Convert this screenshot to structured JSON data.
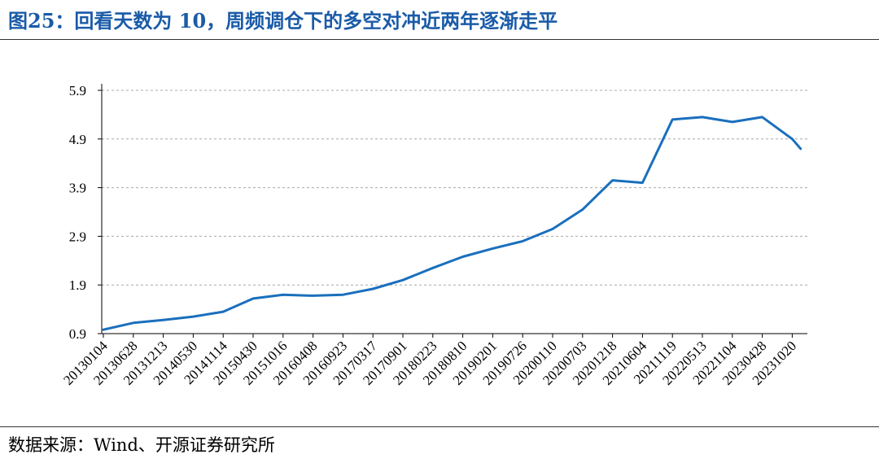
{
  "title": "图25：回看天数为 10，周频调仓下的多空对冲近两年逐渐走平",
  "source": "数据来源：Wind、开源证券研究所",
  "chart_data": {
    "type": "line",
    "title": "",
    "xlabel": "",
    "ylabel": "",
    "ylim": [
      0.9,
      5.9
    ],
    "yticks": [
      "0.9",
      "1.9",
      "2.9",
      "3.9",
      "4.9",
      "5.9"
    ],
    "grid": "horizontal dashed",
    "legend": "none",
    "line_color": "#1a6fbd",
    "x_tick_labels": [
      "20130104",
      "20130628",
      "20131213",
      "20140530",
      "20141114",
      "20150430",
      "20151016",
      "20160408",
      "20160923",
      "20170317",
      "20170901",
      "20180223",
      "20180810",
      "20190201",
      "20190726",
      "20200110",
      "20200703",
      "20201218",
      "20210604",
      "20211119",
      "20220513",
      "20221104",
      "20230428",
      "20231020"
    ],
    "series": [
      {
        "x": [
          "20130104",
          "20130628",
          "20131213",
          "20140530",
          "20141114",
          "20150430",
          "20151016",
          "20160408",
          "20160923",
          "20170317",
          "20170901",
          "20180223",
          "20180810",
          "20190201",
          "20190726",
          "20200110",
          "20200703",
          "20201218",
          "20210604",
          "20211119",
          "20220513",
          "20221104",
          "20230428",
          "20231020",
          "20231208"
        ],
        "values": [
          0.98,
          1.12,
          1.18,
          1.25,
          1.35,
          1.62,
          1.7,
          1.68,
          1.7,
          1.82,
          2.0,
          2.25,
          2.48,
          2.65,
          2.8,
          3.05,
          3.45,
          4.05,
          4.0,
          5.3,
          5.35,
          5.25,
          5.35,
          4.9,
          4.7
        ]
      }
    ]
  }
}
